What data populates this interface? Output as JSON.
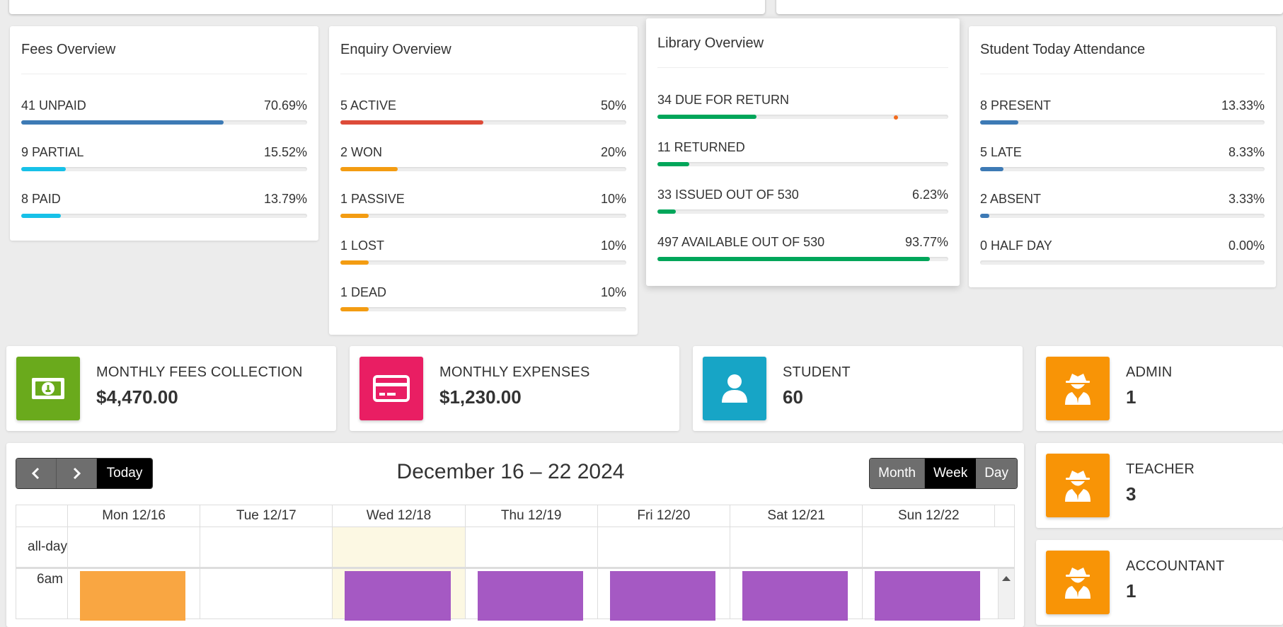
{
  "colors": {
    "blue": "#3d7ab5",
    "cyan": "#17c1e8",
    "red": "#dd4b39",
    "orange": "#f39c12",
    "green": "#00a65a",
    "money_green": "#6aaa1c",
    "pink": "#e91e63",
    "teal": "#17a5c6",
    "amber": "#f89406",
    "event_orange": "#f9a642",
    "event_purple": "#a559c3",
    "today_bg": "#fcf8e3"
  },
  "fees": {
    "title": "Fees Overview",
    "items": [
      {
        "label": "41 UNPAID",
        "pct": "70.69%",
        "value": 70.69,
        "color": "blue"
      },
      {
        "label": "9 PARTIAL",
        "pct": "15.52%",
        "value": 15.52,
        "color": "cyan"
      },
      {
        "label": "8 PAID",
        "pct": "13.79%",
        "value": 13.79,
        "color": "cyan"
      }
    ]
  },
  "enquiry": {
    "title": "Enquiry Overview",
    "items": [
      {
        "label": "5 ACTIVE",
        "pct": "50%",
        "value": 50,
        "color": "red"
      },
      {
        "label": "2 WON",
        "pct": "20%",
        "value": 20,
        "color": "orange"
      },
      {
        "label": "1 PASSIVE",
        "pct": "10%",
        "value": 10,
        "color": "orange"
      },
      {
        "label": "1 LOST",
        "pct": "10%",
        "value": 10,
        "color": "orange"
      },
      {
        "label": "1 DEAD",
        "pct": "10%",
        "value": 10,
        "color": "orange"
      }
    ]
  },
  "library": {
    "title": "Library Overview",
    "items": [
      {
        "label": "34 DUE FOR RETURN",
        "pct": "",
        "value": 34,
        "color": "green"
      },
      {
        "label": "11 RETURNED",
        "pct": "",
        "value": 11,
        "color": "green"
      },
      {
        "label": "33 ISSUED OUT OF 530",
        "pct": "6.23%",
        "value": 6.23,
        "color": "green"
      },
      {
        "label": "497 AVAILABLE OUT OF 530",
        "pct": "93.77%",
        "value": 93.77,
        "color": "green"
      }
    ]
  },
  "attendance": {
    "title": "Student Today Attendance",
    "items": [
      {
        "label": "8 PRESENT",
        "pct": "13.33%",
        "value": 13.33,
        "color": "blue"
      },
      {
        "label": "5 LATE",
        "pct": "8.33%",
        "value": 8.33,
        "color": "blue"
      },
      {
        "label": "2 ABSENT",
        "pct": "3.33%",
        "value": 3.33,
        "color": "blue"
      },
      {
        "label": "0 HALF DAY",
        "pct": "0.00%",
        "value": 0,
        "color": "blue"
      }
    ]
  },
  "stats": {
    "fees_collection": {
      "label": "MONTHLY FEES COLLECTION",
      "value": "$4,470.00",
      "icon": "money-bill-icon"
    },
    "expenses": {
      "label": "MONTHLY EXPENSES",
      "value": "$1,230.00",
      "icon": "credit-card-icon"
    },
    "student": {
      "label": "STUDENT",
      "value": "60",
      "icon": "user-icon"
    },
    "admin": {
      "label": "ADMIN",
      "value": "1",
      "icon": "user-secret-icon"
    },
    "teacher": {
      "label": "TEACHER",
      "value": "3",
      "icon": "user-secret-icon"
    },
    "accountant": {
      "label": "ACCOUNTANT",
      "value": "1",
      "icon": "user-secret-icon"
    }
  },
  "calendar": {
    "title": "December 16 – 22 2024",
    "today_label": "Today",
    "views": [
      {
        "label": "Month",
        "active": false
      },
      {
        "label": "Week",
        "active": true
      },
      {
        "label": "Day",
        "active": false
      }
    ],
    "days": [
      "Mon 12/16",
      "Tue 12/17",
      "Wed 12/18",
      "Thu 12/19",
      "Fri 12/20",
      "Sat 12/21",
      "Sun 12/22"
    ],
    "today_index": 2,
    "allday_label": "all-day",
    "time_label": "6am",
    "events": [
      {
        "day": 0,
        "color": "event_orange"
      },
      {
        "day": 2,
        "color": "event_purple"
      },
      {
        "day": 3,
        "color": "event_purple"
      },
      {
        "day": 4,
        "color": "event_purple"
      },
      {
        "day": 5,
        "color": "event_purple"
      },
      {
        "day": 6,
        "color": "event_purple"
      }
    ]
  }
}
